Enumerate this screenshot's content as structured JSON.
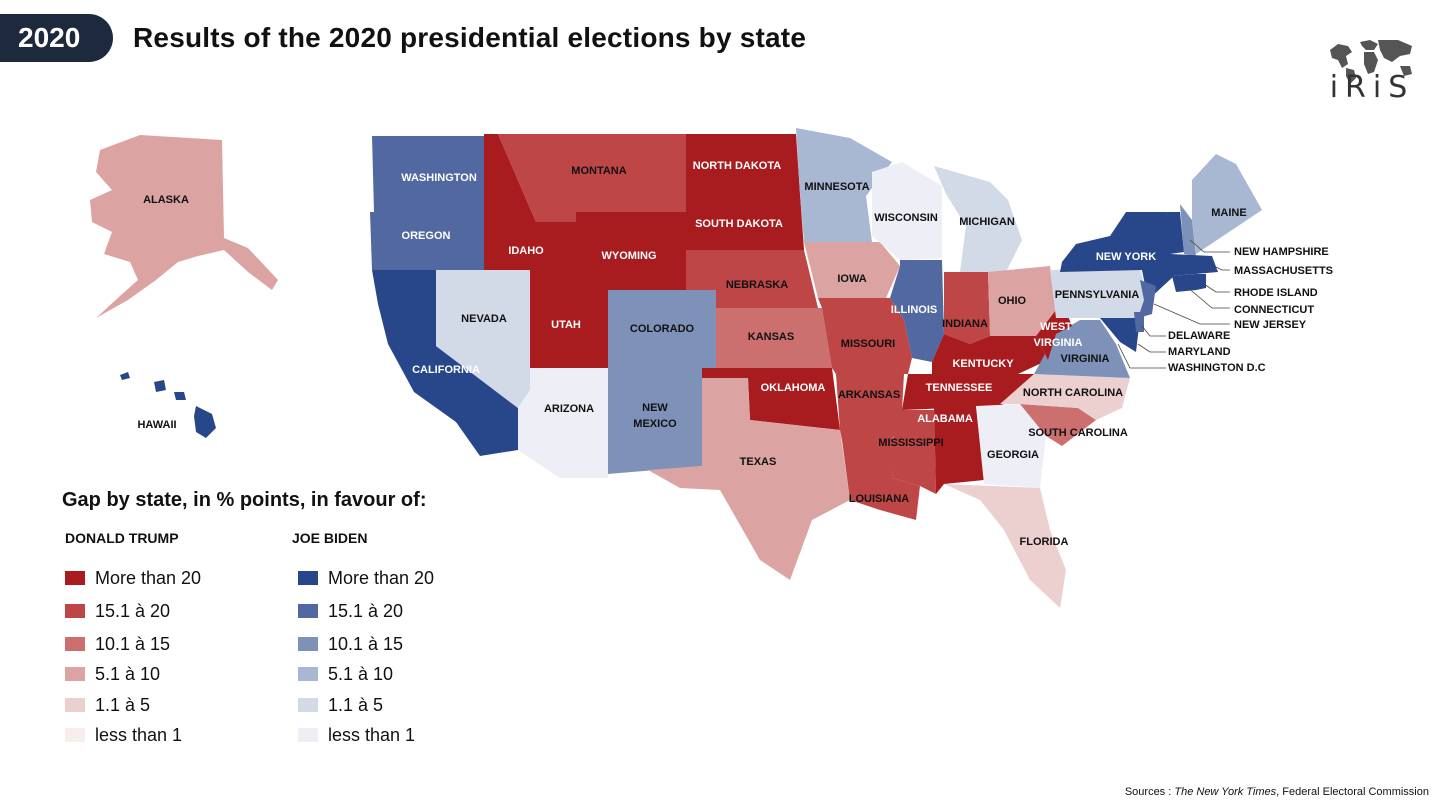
{
  "year": "2020",
  "title": "Results of the 2020 presidential elections by state",
  "logo_text": "iRiS",
  "legend": {
    "title": "Gap by state, in % points, in favour of:",
    "trump_header": "DONALD TRUMP",
    "biden_header": "JOE BIDEN",
    "classes": [
      "More than 20",
      "15.1 à 20",
      "10.1 à 15",
      "5.1 à 10",
      "1.1 à 5",
      "less than 1"
    ],
    "trump_colors": [
      "#a81c1f",
      "#be4646",
      "#cc6f6f",
      "#dca3a3",
      "#eccfcf",
      "#f7eded"
    ],
    "biden_colors": [
      "#28468a",
      "#5168a0",
      "#7d91b9",
      "#a8b7d2",
      "#d2d9e7",
      "#eeeff6"
    ]
  },
  "states": {
    "alaska": "ALASKA",
    "hawaii": "HAWAII",
    "washington": "WASHINGTON",
    "oregon": "OREGON",
    "california": "CALIFORNIA",
    "nevada": "NEVADA",
    "idaho": "IDAHO",
    "montana": "MONTANA",
    "wyoming": "WYOMING",
    "utah": "UTAH",
    "arizona": "ARIZONA",
    "colorado": "COLORADO",
    "new_mexico_1": "NEW",
    "new_mexico_2": "MEXICO",
    "north_dakota": "NORTH DAKOTA",
    "south_dakota": "SOUTH DAKOTA",
    "nebraska": "NEBRASKA",
    "kansas": "KANSAS",
    "oklahoma": "OKLAHOMA",
    "texas": "TEXAS",
    "minnesota": "MINNESOTA",
    "iowa": "IOWA",
    "missouri": "MISSOURI",
    "arkansas": "ARKANSAS",
    "louisiana": "LOUISIANA",
    "wisconsin": "WISCONSIN",
    "illinois": "ILLINOIS",
    "michigan": "MICHIGAN",
    "indiana": "INDIANA",
    "ohio": "OHIO",
    "kentucky": "KENTUCKY",
    "tennessee": "TENNESSEE",
    "mississippi": "MISSISSIPPI",
    "alabama": "ALABAMA",
    "georgia": "GEORGIA",
    "florida": "FLORIDA",
    "south_carolina": "SOUTH CAROLINA",
    "north_carolina": "NORTH CAROLINA",
    "virginia": "VIRGINIA",
    "west_virginia_1": "WEST",
    "west_virginia_2": "VIRGINIA",
    "pennsylvania": "PENNSYLVANIA",
    "new_york": "NEW YORK",
    "maine": "MAINE",
    "new_hampshire": "NEW HAMPSHIRE",
    "massachusetts": "MASSACHUSETTS",
    "rhode_island": "RHODE ISLAND",
    "connecticut": "CONNECTICUT",
    "new_jersey": "NEW JERSEY",
    "delaware": "DELAWARE",
    "maryland": "MARYLAND",
    "washington_dc": "WASHINGTON D.C"
  },
  "sources": {
    "prefix": "Sources : ",
    "nyt": "The New York Times",
    "rest": ", Federal Electoral Commission"
  }
}
